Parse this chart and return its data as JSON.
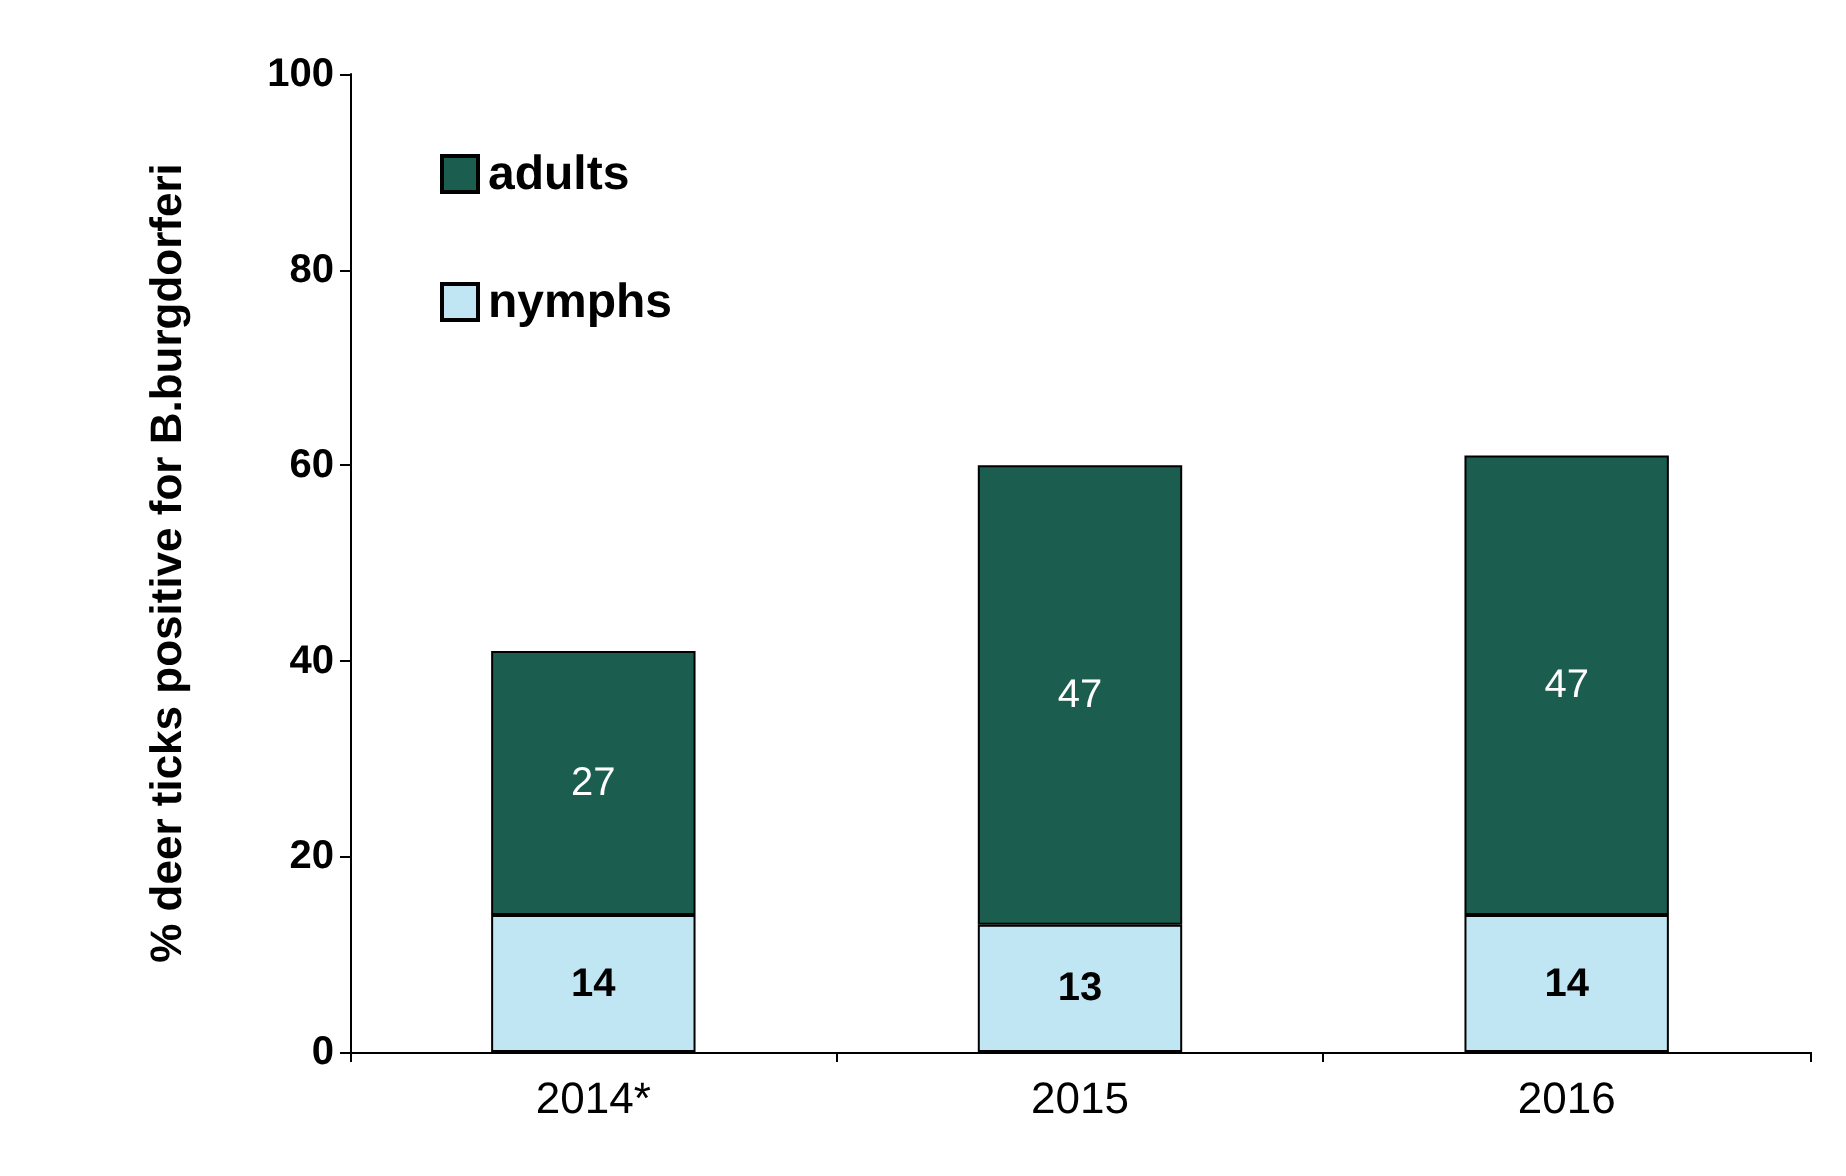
{
  "chart_data": {
    "type": "bar",
    "stacked": true,
    "ylabel": "% deer ticks positive for B.burgdorferi",
    "categories": [
      "2014*",
      "2015",
      "2016"
    ],
    "series": [
      {
        "name": "nymphs",
        "color": "#bfe6f2",
        "values": [
          14,
          13,
          14
        ]
      },
      {
        "name": "adults",
        "color": "#1b5e50",
        "values": [
          27,
          47,
          47
        ]
      }
    ],
    "ylim": [
      0,
      100
    ],
    "yticks": [
      0,
      20,
      40,
      60,
      80,
      100
    ],
    "grid": false,
    "legend": "top left",
    "data_labels": true
  }
}
